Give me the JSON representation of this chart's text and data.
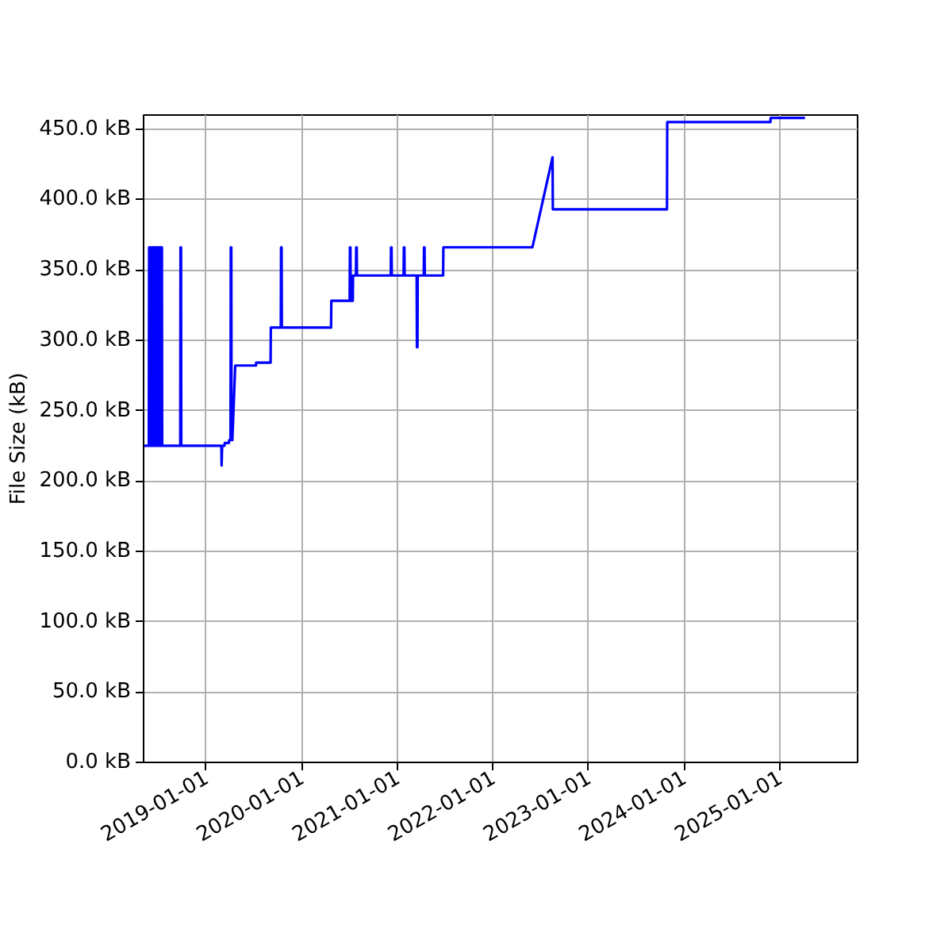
{
  "chart_data": {
    "type": "line",
    "ylabel": "File Size (kB)",
    "x": [
      "2018-05-08",
      "2018-05-28",
      "2018-05-29",
      "2018-05-31",
      "2018-06-01",
      "2018-06-03",
      "2018-06-04",
      "2018-06-06",
      "2018-06-07",
      "2018-06-10",
      "2018-06-11",
      "2018-06-14",
      "2018-06-15",
      "2018-06-17",
      "2018-06-18",
      "2018-06-22",
      "2018-06-23",
      "2018-06-25",
      "2018-06-26",
      "2018-06-30",
      "2018-07-01",
      "2018-07-04",
      "2018-07-05",
      "2018-07-09",
      "2018-07-10",
      "2018-07-12",
      "2018-07-13",
      "2018-07-17",
      "2018-07-18",
      "2018-09-25",
      "2018-09-26",
      "2018-09-28",
      "2018-09-29",
      "2019-03-01",
      "2019-03-02",
      "2019-03-04",
      "2019-03-13",
      "2019-03-14",
      "2019-03-30",
      "2019-03-31",
      "2019-04-05",
      "2019-04-06",
      "2019-04-08",
      "2019-04-09",
      "2019-04-12",
      "2019-04-23",
      "2019-07-11",
      "2019-07-12",
      "2019-09-05",
      "2019-09-06",
      "2019-10-14",
      "2019-10-15",
      "2019-10-17",
      "2019-10-18",
      "2020-04-23",
      "2020-04-24",
      "2020-07-03",
      "2020-07-04",
      "2020-07-06",
      "2020-07-07",
      "2020-07-15",
      "2020-07-16",
      "2020-07-27",
      "2020-07-28",
      "2020-07-30",
      "2020-07-31",
      "2020-12-07",
      "2020-12-08",
      "2020-12-10",
      "2020-12-11",
      "2021-01-25",
      "2021-01-26",
      "2021-01-28",
      "2021-01-29",
      "2021-03-16",
      "2021-03-17",
      "2021-03-19",
      "2021-03-20",
      "2021-04-12",
      "2021-04-13",
      "2021-04-15",
      "2021-04-16",
      "2021-06-25",
      "2021-06-26",
      "2022-06-01",
      "2022-08-17",
      "2022-08-18",
      "2023-10-28",
      "2023-10-29",
      "2024-11-26",
      "2024-11-27",
      "2025-04-07"
    ],
    "series": [
      {
        "color": "#0000ff",
        "values": [
          225,
          225,
          366,
          366,
          225,
          225,
          366,
          366,
          225,
          225,
          366,
          366,
          225,
          225,
          366,
          366,
          225,
          225,
          366,
          366,
          225,
          225,
          366,
          366,
          225,
          225,
          366,
          366,
          225,
          225,
          366,
          366,
          225,
          225,
          211,
          225,
          225,
          227,
          227,
          229,
          229,
          366,
          366,
          229,
          229,
          282,
          282,
          284,
          284,
          309,
          309,
          366,
          366,
          309,
          309,
          328,
          328,
          366,
          366,
          328,
          328,
          346,
          346,
          366,
          366,
          346,
          346,
          366,
          366,
          346,
          346,
          366,
          366,
          346,
          346,
          295,
          295,
          346,
          346,
          366,
          366,
          346,
          346,
          366,
          366,
          430,
          393,
          393,
          455,
          455,
          458,
          458
        ]
      }
    ],
    "xlim": [
      "2018-05-08",
      "2025-10-25"
    ],
    "xticks": [
      "2019-01-01",
      "2020-01-01",
      "2021-01-01",
      "2022-01-01",
      "2023-01-01",
      "2024-01-01",
      "2025-01-01"
    ],
    "ylim": [
      0,
      460
    ],
    "yticks": [
      {
        "value": 0,
        "label": "0.0 kB"
      },
      {
        "value": 50,
        "label": "50.0 kB"
      },
      {
        "value": 100,
        "label": "100.0 kB"
      },
      {
        "value": 150,
        "label": "150.0 kB"
      },
      {
        "value": 200,
        "label": "200.0 kB"
      },
      {
        "value": 250,
        "label": "250.0 kB"
      },
      {
        "value": 300,
        "label": "300.0 kB"
      },
      {
        "value": 350,
        "label": "350.0 kB"
      },
      {
        "value": 400,
        "label": "400.0 kB"
      },
      {
        "value": 450,
        "label": "450.0 kB"
      }
    ],
    "grid": true
  }
}
